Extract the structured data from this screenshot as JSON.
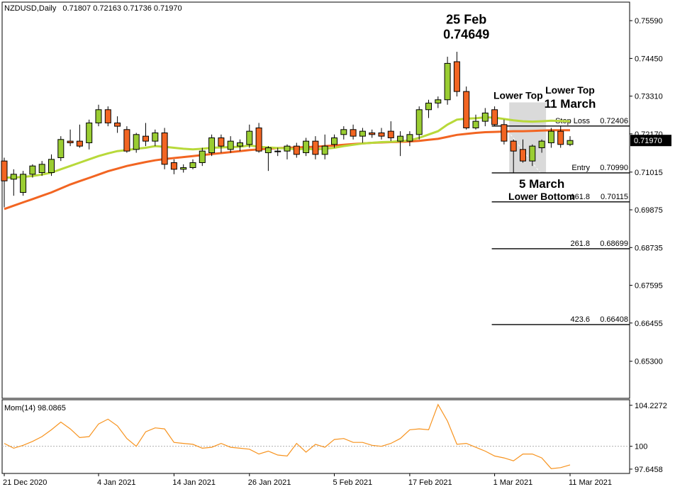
{
  "chart_data": {
    "type": "candlestick",
    "symbol_header": "NZDUSD,Daily",
    "ohlc_header": "0.71807 0.72163 0.71736 0.71970",
    "colors": {
      "bull": "#9acd32",
      "bear": "#f26522",
      "ema_fast": "#b8d93a",
      "ema_slow": "#f26522",
      "momentum": "#f7931e",
      "fib": "#000000",
      "price_tag_bg": "#000000"
    },
    "price_axis": {
      "ylim": [
        0.6418,
        0.7615
      ],
      "ticks": [
        "0.75590",
        "0.74450",
        "0.73310",
        "0.72170",
        "0.71015",
        "0.69875",
        "0.68735",
        "0.67595",
        "0.66455",
        "0.65300"
      ],
      "current_price": "0.71970",
      "current_value": 0.7197
    },
    "x_axis": {
      "labels": [
        {
          "index": 0,
          "text": "21 Dec 2020"
        },
        {
          "index": 10,
          "text": "4 Jan 2021"
        },
        {
          "index": 18,
          "text": "14 Jan 2021"
        },
        {
          "index": 26,
          "text": "26 Jan 2021"
        },
        {
          "index": 35,
          "text": "5 Feb 2021"
        },
        {
          "index": 43,
          "text": "17 Feb 2021"
        },
        {
          "index": 52,
          "text": "1 Mar 2021"
        },
        {
          "index": 60,
          "text": "11 Mar 2021"
        }
      ]
    },
    "candles": [
      {
        "o": 0.7135,
        "h": 0.7145,
        "l": 0.6995,
        "c": 0.7075
      },
      {
        "o": 0.708,
        "h": 0.711,
        "l": 0.703,
        "c": 0.7095
      },
      {
        "o": 0.704,
        "h": 0.7105,
        "l": 0.703,
        "c": 0.7095
      },
      {
        "o": 0.7095,
        "h": 0.7125,
        "l": 0.7085,
        "c": 0.712
      },
      {
        "o": 0.71,
        "h": 0.7135,
        "l": 0.709,
        "c": 0.7125
      },
      {
        "o": 0.71,
        "h": 0.7155,
        "l": 0.709,
        "c": 0.714
      },
      {
        "o": 0.7145,
        "h": 0.721,
        "l": 0.7135,
        "c": 0.72
      },
      {
        "o": 0.7195,
        "h": 0.723,
        "l": 0.718,
        "c": 0.719
      },
      {
        "o": 0.7195,
        "h": 0.7245,
        "l": 0.7175,
        "c": 0.718
      },
      {
        "o": 0.719,
        "h": 0.726,
        "l": 0.717,
        "c": 0.725
      },
      {
        "o": 0.725,
        "h": 0.7305,
        "l": 0.724,
        "c": 0.729
      },
      {
        "o": 0.729,
        "h": 0.73,
        "l": 0.724,
        "c": 0.725
      },
      {
        "o": 0.725,
        "h": 0.727,
        "l": 0.722,
        "c": 0.724
      },
      {
        "o": 0.723,
        "h": 0.724,
        "l": 0.716,
        "c": 0.7165
      },
      {
        "o": 0.717,
        "h": 0.722,
        "l": 0.716,
        "c": 0.7215
      },
      {
        "o": 0.721,
        "h": 0.725,
        "l": 0.718,
        "c": 0.7195
      },
      {
        "o": 0.7195,
        "h": 0.723,
        "l": 0.718,
        "c": 0.722
      },
      {
        "o": 0.722,
        "h": 0.7235,
        "l": 0.711,
        "c": 0.7125
      },
      {
        "o": 0.713,
        "h": 0.714,
        "l": 0.7095,
        "c": 0.711
      },
      {
        "o": 0.711,
        "h": 0.7125,
        "l": 0.71,
        "c": 0.7115
      },
      {
        "o": 0.7115,
        "h": 0.714,
        "l": 0.711,
        "c": 0.713
      },
      {
        "o": 0.713,
        "h": 0.7175,
        "l": 0.712,
        "c": 0.7165
      },
      {
        "o": 0.716,
        "h": 0.7215,
        "l": 0.715,
        "c": 0.7205
      },
      {
        "o": 0.7205,
        "h": 0.7215,
        "l": 0.716,
        "c": 0.718
      },
      {
        "o": 0.717,
        "h": 0.721,
        "l": 0.716,
        "c": 0.7195
      },
      {
        "o": 0.718,
        "h": 0.72,
        "l": 0.7165,
        "c": 0.719
      },
      {
        "o": 0.7185,
        "h": 0.7245,
        "l": 0.7175,
        "c": 0.7225
      },
      {
        "o": 0.7235,
        "h": 0.725,
        "l": 0.716,
        "c": 0.7165
      },
      {
        "o": 0.716,
        "h": 0.718,
        "l": 0.7105,
        "c": 0.7175
      },
      {
        "o": 0.7165,
        "h": 0.7175,
        "l": 0.715,
        "c": 0.7165
      },
      {
        "o": 0.7165,
        "h": 0.7185,
        "l": 0.714,
        "c": 0.718
      },
      {
        "o": 0.718,
        "h": 0.719,
        "l": 0.7145,
        "c": 0.7155
      },
      {
        "o": 0.716,
        "h": 0.7205,
        "l": 0.715,
        "c": 0.7195
      },
      {
        "o": 0.7195,
        "h": 0.721,
        "l": 0.714,
        "c": 0.7155
      },
      {
        "o": 0.7155,
        "h": 0.7215,
        "l": 0.714,
        "c": 0.718
      },
      {
        "o": 0.7185,
        "h": 0.7215,
        "l": 0.7175,
        "c": 0.7205
      },
      {
        "o": 0.7215,
        "h": 0.724,
        "l": 0.72,
        "c": 0.723
      },
      {
        "o": 0.723,
        "h": 0.7245,
        "l": 0.72,
        "c": 0.721
      },
      {
        "o": 0.721,
        "h": 0.7235,
        "l": 0.719,
        "c": 0.7225
      },
      {
        "o": 0.722,
        "h": 0.723,
        "l": 0.7205,
        "c": 0.7215
      },
      {
        "o": 0.722,
        "h": 0.7235,
        "l": 0.72,
        "c": 0.721
      },
      {
        "o": 0.7225,
        "h": 0.7255,
        "l": 0.7195,
        "c": 0.7205
      },
      {
        "o": 0.7195,
        "h": 0.7225,
        "l": 0.715,
        "c": 0.721
      },
      {
        "o": 0.7195,
        "h": 0.7225,
        "l": 0.718,
        "c": 0.7215
      },
      {
        "o": 0.7215,
        "h": 0.73,
        "l": 0.72,
        "c": 0.729
      },
      {
        "o": 0.729,
        "h": 0.732,
        "l": 0.7265,
        "c": 0.731
      },
      {
        "o": 0.731,
        "h": 0.733,
        "l": 0.7295,
        "c": 0.732
      },
      {
        "o": 0.732,
        "h": 0.745,
        "l": 0.7305,
        "c": 0.743
      },
      {
        "o": 0.7435,
        "h": 0.7465,
        "l": 0.733,
        "c": 0.7345
      },
      {
        "o": 0.7345,
        "h": 0.736,
        "l": 0.723,
        "c": 0.7235
      },
      {
        "o": 0.7235,
        "h": 0.7275,
        "l": 0.723,
        "c": 0.7255
      },
      {
        "o": 0.7255,
        "h": 0.7295,
        "l": 0.724,
        "c": 0.728
      },
      {
        "o": 0.729,
        "h": 0.73,
        "l": 0.724,
        "c": 0.7245
      },
      {
        "o": 0.7245,
        "h": 0.726,
        "l": 0.7185,
        "c": 0.7195
      },
      {
        "o": 0.7195,
        "h": 0.72,
        "l": 0.71,
        "c": 0.7165
      },
      {
        "o": 0.717,
        "h": 0.72,
        "l": 0.713,
        "c": 0.7135
      },
      {
        "o": 0.7135,
        "h": 0.7185,
        "l": 0.712,
        "c": 0.718
      },
      {
        "o": 0.7175,
        "h": 0.72,
        "l": 0.716,
        "c": 0.7195
      },
      {
        "o": 0.719,
        "h": 0.7235,
        "l": 0.7175,
        "c": 0.7225
      },
      {
        "o": 0.7225,
        "h": 0.724,
        "l": 0.7175,
        "c": 0.7185
      },
      {
        "o": 0.7185,
        "h": 0.721,
        "l": 0.718,
        "c": 0.7197
      }
    ],
    "ema_fast": [
      0.7085,
      0.7085,
      0.7087,
      0.709,
      0.7094,
      0.71,
      0.711,
      0.712,
      0.713,
      0.714,
      0.715,
      0.7158,
      0.7165,
      0.7168,
      0.7172,
      0.7175,
      0.718,
      0.7178,
      0.7175,
      0.7172,
      0.717,
      0.7172,
      0.7175,
      0.7176,
      0.7177,
      0.7178,
      0.7182,
      0.7178,
      0.7176,
      0.7174,
      0.7173,
      0.717,
      0.7172,
      0.717,
      0.7172,
      0.7175,
      0.718,
      0.7184,
      0.7188,
      0.719,
      0.7192,
      0.7193,
      0.7195,
      0.7197,
      0.7205,
      0.7215,
      0.7225,
      0.7245,
      0.726,
      0.7263,
      0.7264,
      0.7267,
      0.7266,
      0.7262,
      0.7258,
      0.7255,
      0.7254,
      0.7255,
      0.7257,
      0.7256,
      0.7255
    ],
    "ema_slow": [
      0.699,
      0.7,
      0.701,
      0.702,
      0.703,
      0.704,
      0.7052,
      0.7064,
      0.7074,
      0.7084,
      0.7094,
      0.7104,
      0.7112,
      0.712,
      0.7126,
      0.7132,
      0.7137,
      0.7141,
      0.7144,
      0.7147,
      0.715,
      0.7153,
      0.7156,
      0.7159,
      0.7162,
      0.7165,
      0.7168,
      0.717,
      0.7172,
      0.7174,
      0.7175,
      0.7176,
      0.7177,
      0.7178,
      0.718,
      0.7182,
      0.7184,
      0.7186,
      0.7188,
      0.719,
      0.7191,
      0.7192,
      0.7193,
      0.7194,
      0.7196,
      0.7199,
      0.7202,
      0.7208,
      0.7214,
      0.7217,
      0.722,
      0.7222,
      0.7223,
      0.7224,
      0.7225,
      0.7225,
      0.7226,
      0.7227,
      0.7228,
      0.7228,
      0.7228
    ],
    "levels": [
      {
        "name": "Stop Loss",
        "ratio": "",
        "value": "0.72406",
        "price": 0.72406,
        "start_index": 52
      },
      {
        "name": "Entry",
        "ratio": "",
        "value": "0.70990",
        "price": 0.7099,
        "start_index": 52
      },
      {
        "name": "",
        "ratio": "161.8",
        "value": "0.70115",
        "price": 0.70115,
        "start_index": 52
      },
      {
        "name": "",
        "ratio": "261.8",
        "value": "0.68699",
        "price": 0.68699,
        "start_index": 52
      },
      {
        "name": "",
        "ratio": "423.6",
        "value": "0.66408",
        "price": 0.66408,
        "start_index": 52
      }
    ],
    "highlight_zone": {
      "start_index": 54,
      "end_index": 57,
      "top": 0.7312,
      "bottom": 0.7099
    },
    "annotations": {
      "peak_date": "25 Feb",
      "peak_price": "0.74649",
      "peak_index": 49,
      "peak_anchor_price": 0.7468,
      "lower_top_1": "Lower Top",
      "lower_top_1_index": 54.5,
      "lower_top_1_price": 0.731,
      "lower_top_2": "Lower Top",
      "lower_top_2_date": "11 March",
      "lower_top_2_index": 60,
      "lower_top_2_price": 0.7296,
      "bottom_date": "5 March",
      "bottom_label": "Lower Bottom",
      "bottom_index": 57,
      "bottom_price": 0.7086
    },
    "momentum": {
      "header": "Mom(14) 98.0865",
      "ylim": [
        97.2,
        104.8
      ],
      "ticks": [
        "104.2272",
        "100",
        "97.6458"
      ],
      "tick_values": [
        104.2272,
        100,
        97.6458
      ],
      "reference": 100,
      "values": [
        100.3,
        99.8,
        100.1,
        100.5,
        101.0,
        101.7,
        102.5,
        101.8,
        100.9,
        101.0,
        102.3,
        102.8,
        102.1,
        100.8,
        100.0,
        101.5,
        101.9,
        101.8,
        100.4,
        100.3,
        100.2,
        99.8,
        99.9,
        100.3,
        99.9,
        99.8,
        99.7,
        99.2,
        99.5,
        99.1,
        99.0,
        100.3,
        99.4,
        100.2,
        99.9,
        100.7,
        100.8,
        100.4,
        100.4,
        100.1,
        100.0,
        100.3,
        100.8,
        101.7,
        101.8,
        101.7,
        104.3,
        102.6,
        100.2,
        100.3,
        99.9,
        99.5,
        99.0,
        98.8,
        98.5,
        99.2,
        99.2,
        98.8,
        97.7,
        97.8,
        98.0865
      ]
    }
  }
}
